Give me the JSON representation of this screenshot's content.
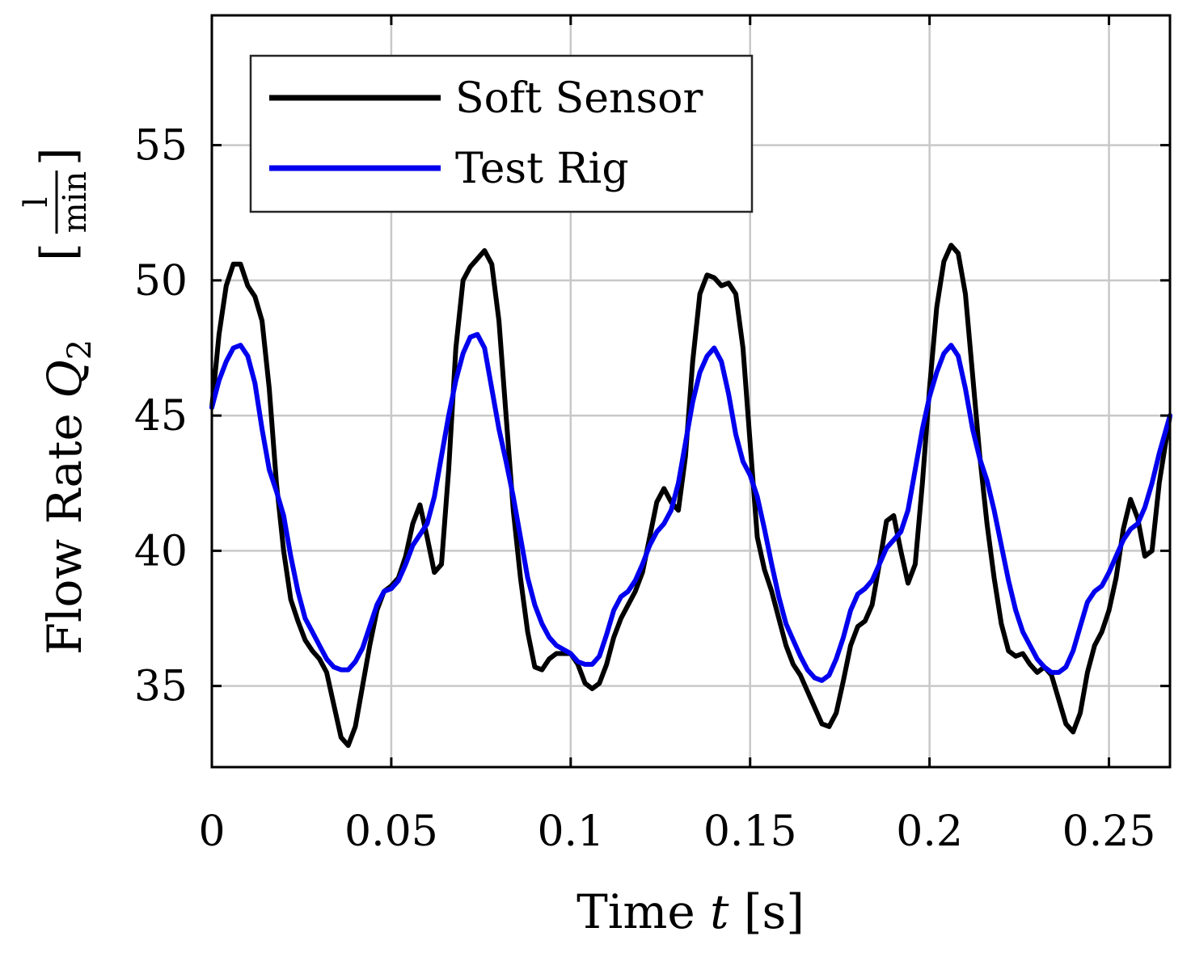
{
  "chart_data": {
    "type": "line",
    "xlabel": {
      "prefix": "Time ",
      "var": "t",
      "unit": " [s]"
    },
    "ylabel": {
      "prefix": "Flow Rate ",
      "var": "Q",
      "sub": "2",
      "unit_num": "l",
      "unit_den": "min"
    },
    "xlim": [
      0,
      0.267
    ],
    "ylim": [
      32,
      59.8
    ],
    "xticks": [
      0,
      0.05,
      0.1,
      0.15,
      0.2,
      0.25
    ],
    "xtick_labels": [
      "0",
      "0.05",
      "0.1",
      "0.15",
      "0.2",
      "0.25"
    ],
    "yticks": [
      35,
      40,
      45,
      50,
      55
    ],
    "ytick_labels": [
      "35",
      "40",
      "45",
      "50",
      "55"
    ],
    "grid": true,
    "legend": {
      "placement": "top-left"
    },
    "series": [
      {
        "name": "Soft Sensor",
        "color": "#000000",
        "points": [
          [
            0.0,
            45.3
          ],
          [
            0.002,
            48.0
          ],
          [
            0.004,
            49.8
          ],
          [
            0.006,
            50.6
          ],
          [
            0.008,
            50.6
          ],
          [
            0.01,
            49.8
          ],
          [
            0.012,
            49.4
          ],
          [
            0.014,
            48.5
          ],
          [
            0.016,
            46.0
          ],
          [
            0.018,
            42.5
          ],
          [
            0.02,
            40.0
          ],
          [
            0.022,
            38.2
          ],
          [
            0.024,
            37.4
          ],
          [
            0.026,
            36.7
          ],
          [
            0.028,
            36.3
          ],
          [
            0.03,
            36.0
          ],
          [
            0.032,
            35.5
          ],
          [
            0.034,
            34.3
          ],
          [
            0.036,
            33.1
          ],
          [
            0.038,
            32.8
          ],
          [
            0.04,
            33.5
          ],
          [
            0.042,
            35.0
          ],
          [
            0.044,
            36.5
          ],
          [
            0.046,
            37.8
          ],
          [
            0.048,
            38.5
          ],
          [
            0.05,
            38.7
          ],
          [
            0.052,
            39.0
          ],
          [
            0.054,
            39.8
          ],
          [
            0.056,
            41.0
          ],
          [
            0.058,
            41.7
          ],
          [
            0.06,
            40.5
          ],
          [
            0.062,
            39.2
          ],
          [
            0.064,
            39.5
          ],
          [
            0.066,
            43.0
          ],
          [
            0.068,
            47.5
          ],
          [
            0.07,
            50.0
          ],
          [
            0.072,
            50.5
          ],
          [
            0.074,
            50.8
          ],
          [
            0.076,
            51.1
          ],
          [
            0.078,
            50.6
          ],
          [
            0.08,
            48.5
          ],
          [
            0.082,
            45.0
          ],
          [
            0.084,
            41.5
          ],
          [
            0.086,
            39.0
          ],
          [
            0.088,
            37.0
          ],
          [
            0.09,
            35.7
          ],
          [
            0.092,
            35.6
          ],
          [
            0.094,
            36.0
          ],
          [
            0.096,
            36.2
          ],
          [
            0.1,
            36.2
          ],
          [
            0.102,
            35.8
          ],
          [
            0.104,
            35.1
          ],
          [
            0.106,
            34.9
          ],
          [
            0.108,
            35.1
          ],
          [
            0.11,
            35.8
          ],
          [
            0.112,
            36.8
          ],
          [
            0.114,
            37.5
          ],
          [
            0.116,
            38.0
          ],
          [
            0.118,
            38.5
          ],
          [
            0.12,
            39.2
          ],
          [
            0.122,
            40.5
          ],
          [
            0.124,
            41.8
          ],
          [
            0.126,
            42.3
          ],
          [
            0.128,
            41.8
          ],
          [
            0.13,
            41.5
          ],
          [
            0.132,
            43.5
          ],
          [
            0.134,
            47.0
          ],
          [
            0.136,
            49.5
          ],
          [
            0.138,
            50.2
          ],
          [
            0.14,
            50.1
          ],
          [
            0.142,
            49.8
          ],
          [
            0.144,
            49.9
          ],
          [
            0.146,
            49.5
          ],
          [
            0.148,
            47.5
          ],
          [
            0.15,
            44.0
          ],
          [
            0.152,
            40.5
          ],
          [
            0.154,
            39.3
          ],
          [
            0.156,
            38.5
          ],
          [
            0.158,
            37.5
          ],
          [
            0.16,
            36.5
          ],
          [
            0.162,
            35.8
          ],
          [
            0.164,
            35.4
          ],
          [
            0.166,
            34.8
          ],
          [
            0.168,
            34.2
          ],
          [
            0.17,
            33.6
          ],
          [
            0.172,
            33.5
          ],
          [
            0.174,
            34.0
          ],
          [
            0.176,
            35.2
          ],
          [
            0.178,
            36.5
          ],
          [
            0.18,
            37.2
          ],
          [
            0.182,
            37.4
          ],
          [
            0.184,
            38.0
          ],
          [
            0.186,
            39.5
          ],
          [
            0.188,
            41.1
          ],
          [
            0.19,
            41.3
          ],
          [
            0.192,
            40.0
          ],
          [
            0.194,
            38.8
          ],
          [
            0.196,
            39.5
          ],
          [
            0.198,
            42.5
          ],
          [
            0.2,
            46.0
          ],
          [
            0.202,
            49.0
          ],
          [
            0.204,
            50.7
          ],
          [
            0.206,
            51.3
          ],
          [
            0.208,
            51.0
          ],
          [
            0.21,
            49.5
          ],
          [
            0.212,
            46.5
          ],
          [
            0.214,
            43.5
          ],
          [
            0.216,
            41.0
          ],
          [
            0.218,
            39.0
          ],
          [
            0.22,
            37.3
          ],
          [
            0.222,
            36.3
          ],
          [
            0.224,
            36.1
          ],
          [
            0.226,
            36.2
          ],
          [
            0.228,
            35.8
          ],
          [
            0.23,
            35.5
          ],
          [
            0.232,
            35.7
          ],
          [
            0.234,
            35.4
          ],
          [
            0.236,
            34.5
          ],
          [
            0.238,
            33.6
          ],
          [
            0.24,
            33.3
          ],
          [
            0.242,
            34.0
          ],
          [
            0.244,
            35.5
          ],
          [
            0.246,
            36.5
          ],
          [
            0.248,
            37.0
          ],
          [
            0.25,
            37.8
          ],
          [
            0.252,
            39.0
          ],
          [
            0.254,
            40.8
          ],
          [
            0.256,
            41.9
          ],
          [
            0.258,
            41.2
          ],
          [
            0.26,
            39.8
          ],
          [
            0.262,
            40.0
          ],
          [
            0.264,
            42.5
          ],
          [
            0.267,
            45.0
          ]
        ]
      },
      {
        "name": "Test Rig",
        "color": "#0000ee",
        "points": [
          [
            0.0,
            45.3
          ],
          [
            0.002,
            46.3
          ],
          [
            0.004,
            47.0
          ],
          [
            0.006,
            47.5
          ],
          [
            0.008,
            47.6
          ],
          [
            0.01,
            47.2
          ],
          [
            0.012,
            46.2
          ],
          [
            0.014,
            44.5
          ],
          [
            0.016,
            43.0
          ],
          [
            0.018,
            42.2
          ],
          [
            0.02,
            41.3
          ],
          [
            0.022,
            39.8
          ],
          [
            0.024,
            38.5
          ],
          [
            0.026,
            37.5
          ],
          [
            0.028,
            37.0
          ],
          [
            0.03,
            36.5
          ],
          [
            0.032,
            36.0
          ],
          [
            0.034,
            35.7
          ],
          [
            0.036,
            35.6
          ],
          [
            0.038,
            35.6
          ],
          [
            0.04,
            35.9
          ],
          [
            0.042,
            36.4
          ],
          [
            0.044,
            37.2
          ],
          [
            0.046,
            38.0
          ],
          [
            0.048,
            38.5
          ],
          [
            0.05,
            38.6
          ],
          [
            0.052,
            38.9
          ],
          [
            0.054,
            39.5
          ],
          [
            0.056,
            40.2
          ],
          [
            0.058,
            40.6
          ],
          [
            0.06,
            41.0
          ],
          [
            0.062,
            42.0
          ],
          [
            0.064,
            43.5
          ],
          [
            0.066,
            45.0
          ],
          [
            0.068,
            46.3
          ],
          [
            0.07,
            47.3
          ],
          [
            0.072,
            47.9
          ],
          [
            0.074,
            48.0
          ],
          [
            0.076,
            47.5
          ],
          [
            0.078,
            46.0
          ],
          [
            0.08,
            44.5
          ],
          [
            0.082,
            43.3
          ],
          [
            0.084,
            42.0
          ],
          [
            0.086,
            40.5
          ],
          [
            0.088,
            39.0
          ],
          [
            0.09,
            38.0
          ],
          [
            0.092,
            37.3
          ],
          [
            0.094,
            36.8
          ],
          [
            0.096,
            36.5
          ],
          [
            0.1,
            36.2
          ],
          [
            0.102,
            35.9
          ],
          [
            0.104,
            35.8
          ],
          [
            0.106,
            35.8
          ],
          [
            0.108,
            36.1
          ],
          [
            0.11,
            36.9
          ],
          [
            0.112,
            37.8
          ],
          [
            0.114,
            38.3
          ],
          [
            0.116,
            38.5
          ],
          [
            0.118,
            38.9
          ],
          [
            0.12,
            39.5
          ],
          [
            0.122,
            40.2
          ],
          [
            0.124,
            40.7
          ],
          [
            0.126,
            41.0
          ],
          [
            0.128,
            41.5
          ],
          [
            0.13,
            42.5
          ],
          [
            0.132,
            44.0
          ],
          [
            0.134,
            45.5
          ],
          [
            0.136,
            46.6
          ],
          [
            0.138,
            47.2
          ],
          [
            0.14,
            47.5
          ],
          [
            0.142,
            47.0
          ],
          [
            0.144,
            45.8
          ],
          [
            0.146,
            44.3
          ],
          [
            0.148,
            43.3
          ],
          [
            0.15,
            42.8
          ],
          [
            0.152,
            42.0
          ],
          [
            0.154,
            40.8
          ],
          [
            0.156,
            39.5
          ],
          [
            0.158,
            38.3
          ],
          [
            0.16,
            37.3
          ],
          [
            0.162,
            36.7
          ],
          [
            0.164,
            36.1
          ],
          [
            0.166,
            35.6
          ],
          [
            0.168,
            35.3
          ],
          [
            0.17,
            35.2
          ],
          [
            0.172,
            35.4
          ],
          [
            0.174,
            36.0
          ],
          [
            0.176,
            36.8
          ],
          [
            0.178,
            37.8
          ],
          [
            0.18,
            38.4
          ],
          [
            0.182,
            38.6
          ],
          [
            0.184,
            38.9
          ],
          [
            0.186,
            39.5
          ],
          [
            0.188,
            40.1
          ],
          [
            0.19,
            40.4
          ],
          [
            0.192,
            40.7
          ],
          [
            0.194,
            41.5
          ],
          [
            0.196,
            43.0
          ],
          [
            0.198,
            44.5
          ],
          [
            0.2,
            45.7
          ],
          [
            0.202,
            46.6
          ],
          [
            0.204,
            47.3
          ],
          [
            0.206,
            47.6
          ],
          [
            0.208,
            47.2
          ],
          [
            0.21,
            46.0
          ],
          [
            0.212,
            44.5
          ],
          [
            0.214,
            43.4
          ],
          [
            0.216,
            42.6
          ],
          [
            0.218,
            41.5
          ],
          [
            0.22,
            40.2
          ],
          [
            0.222,
            38.9
          ],
          [
            0.224,
            37.8
          ],
          [
            0.226,
            37.0
          ],
          [
            0.228,
            36.5
          ],
          [
            0.23,
            36.0
          ],
          [
            0.232,
            35.7
          ],
          [
            0.234,
            35.5
          ],
          [
            0.236,
            35.5
          ],
          [
            0.238,
            35.7
          ],
          [
            0.24,
            36.3
          ],
          [
            0.242,
            37.2
          ],
          [
            0.244,
            38.1
          ],
          [
            0.246,
            38.5
          ],
          [
            0.248,
            38.7
          ],
          [
            0.25,
            39.2
          ],
          [
            0.252,
            39.8
          ],
          [
            0.254,
            40.4
          ],
          [
            0.256,
            40.8
          ],
          [
            0.258,
            41.0
          ],
          [
            0.26,
            41.6
          ],
          [
            0.262,
            42.5
          ],
          [
            0.264,
            43.6
          ],
          [
            0.267,
            45.0
          ]
        ]
      }
    ]
  }
}
